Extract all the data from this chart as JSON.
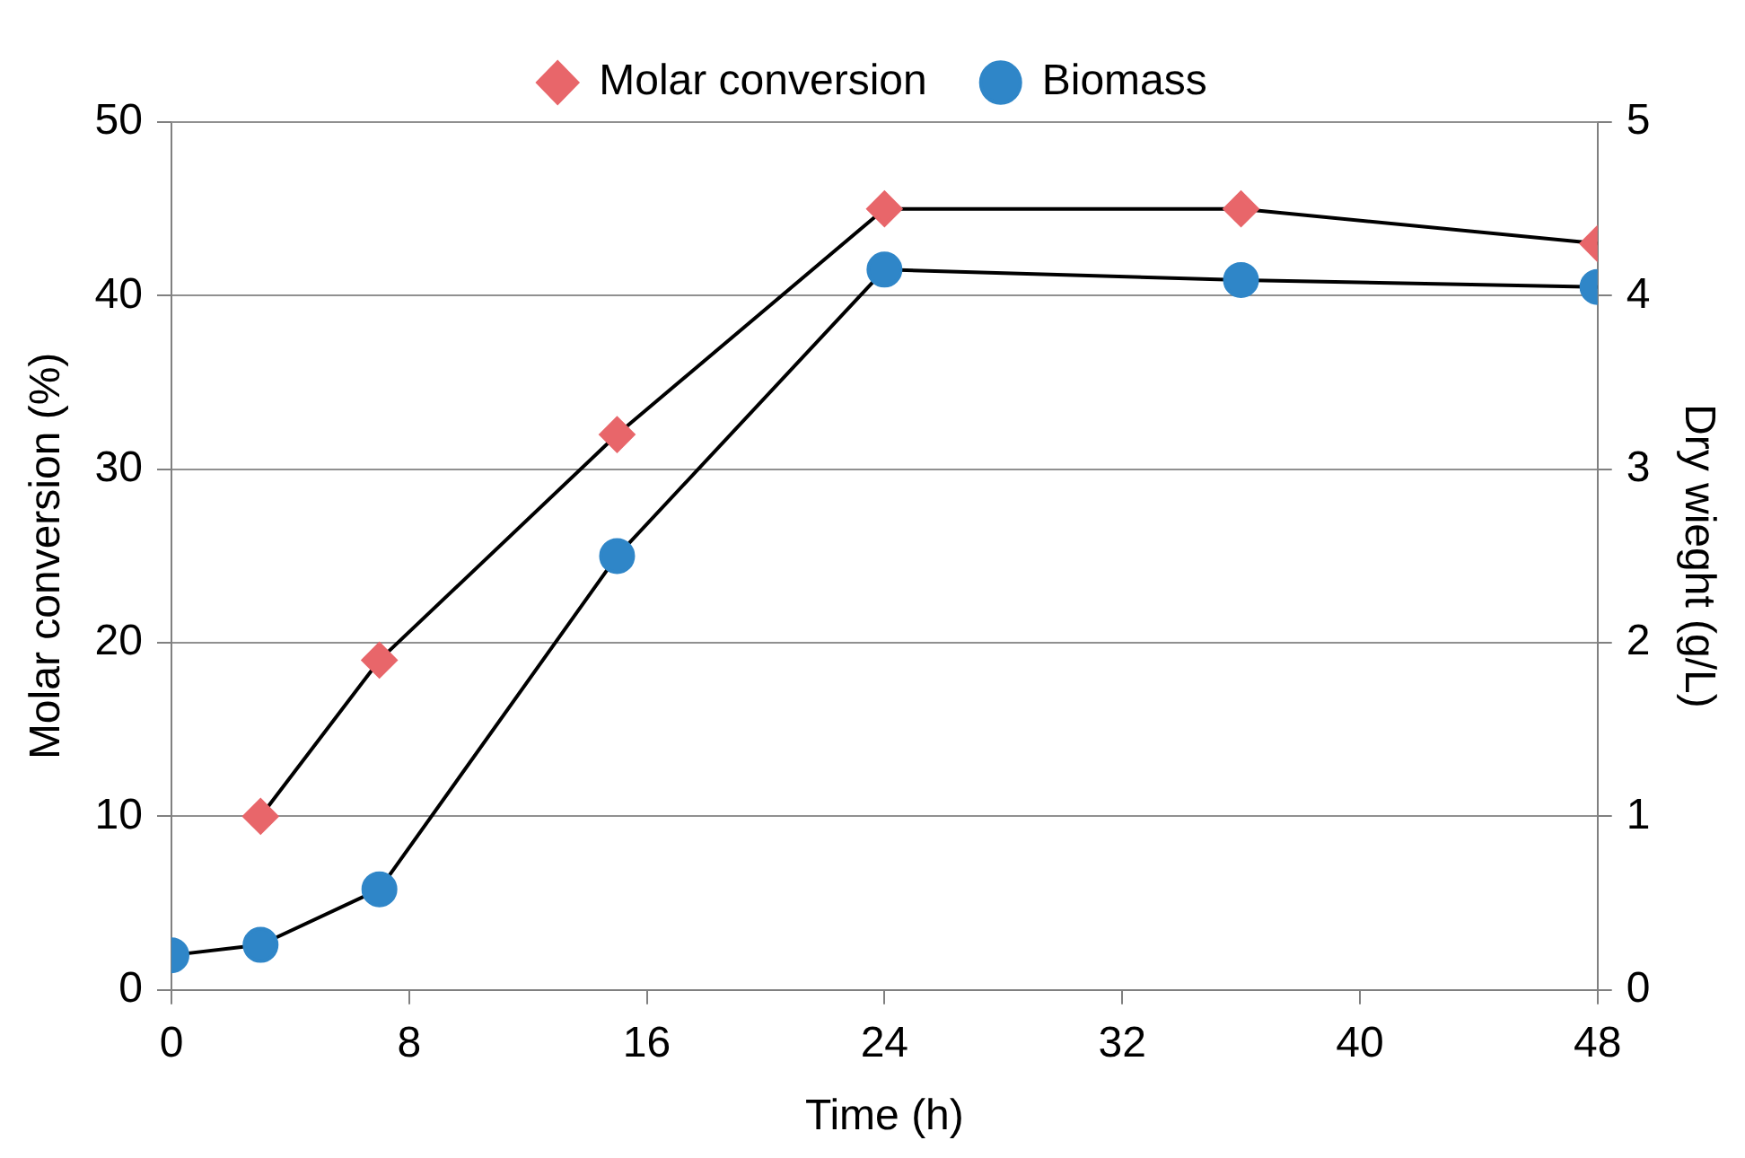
{
  "chart_data": {
    "type": "line",
    "xlabel": "Time (h)",
    "ylabel": "Molar conversion (%)",
    "y2label": "Dry wieght (g/L)",
    "xlim": [
      0,
      48
    ],
    "xticks": [
      0,
      8,
      16,
      24,
      32,
      40,
      48
    ],
    "ylim": [
      0,
      50
    ],
    "yticks": [
      0,
      10,
      20,
      30,
      40,
      50
    ],
    "y2lim": [
      0,
      5
    ],
    "y2ticks": [
      0,
      1,
      2,
      3,
      4,
      5
    ],
    "grid": "y",
    "legend": "top",
    "line_style": "solid",
    "series": [
      {
        "name": "Molar conversion",
        "color": "#e8666a",
        "marker": "diamond",
        "x": [
          3,
          7,
          15,
          24,
          36,
          48
        ],
        "values": [
          10,
          19,
          32,
          45,
          45,
          43
        ]
      },
      {
        "name": "Biomass",
        "color": "#2f86c8",
        "marker": "circle",
        "axis": "y2",
        "x": [
          0,
          3,
          7,
          15,
          24,
          36,
          48
        ],
        "values": [
          0.2,
          0.26,
          0.58,
          2.5,
          4.15,
          4.09,
          4.05
        ]
      }
    ]
  }
}
